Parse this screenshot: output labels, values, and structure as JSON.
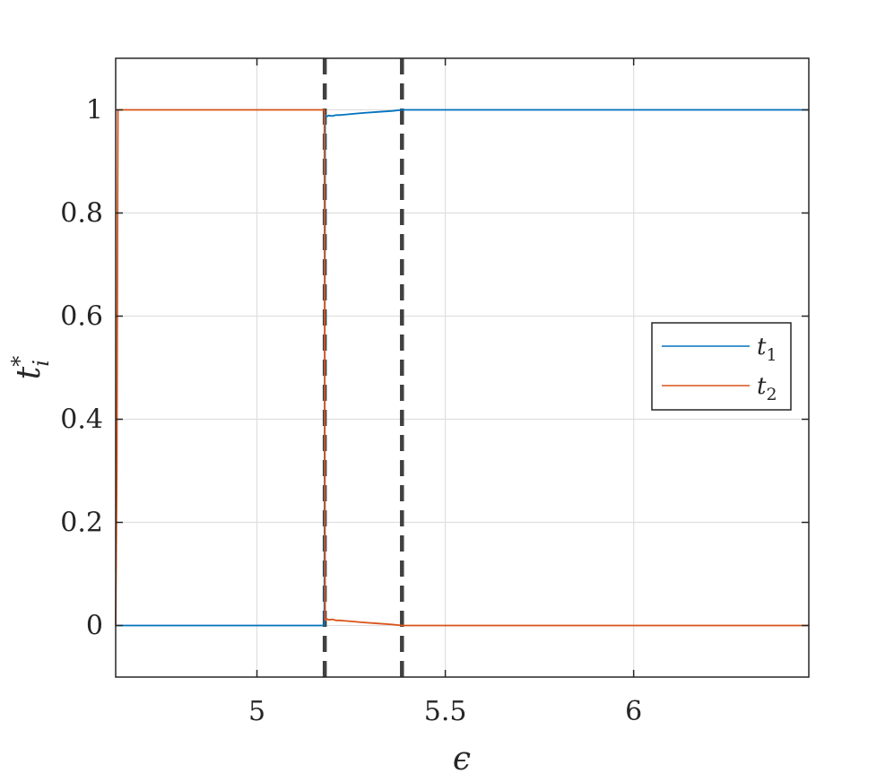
{
  "chart_data": {
    "type": "line",
    "title": "",
    "xlabel": "ϵ",
    "ylabel_base": "t",
    "ylabel_sup": "*",
    "ylabel_sub": "i",
    "xlim": [
      4.625,
      6.465
    ],
    "ylim": [
      -0.1,
      1.1
    ],
    "xticks": [
      {
        "value": 5,
        "label": "5"
      },
      {
        "value": 5.5,
        "label": "5.5"
      },
      {
        "value": 6,
        "label": "6"
      }
    ],
    "yticks": [
      {
        "value": 0,
        "label": "0"
      },
      {
        "value": 0.2,
        "label": "0.2"
      },
      {
        "value": 0.4,
        "label": "0.4"
      },
      {
        "value": 0.6,
        "label": "0.6"
      },
      {
        "value": 0.8,
        "label": "0.8"
      },
      {
        "value": 1,
        "label": "1"
      }
    ],
    "grid": true,
    "legend_position": "right",
    "vlines": [
      {
        "x": 5.18,
        "style": "dashed",
        "color": "#404040"
      },
      {
        "x": 5.385,
        "style": "dashed",
        "color": "#404040"
      }
    ],
    "series": [
      {
        "name": "t",
        "name_sub": "1",
        "color": "#0072BD",
        "x": [
          4.625,
          4.63,
          5.179,
          5.181,
          5.185,
          5.19,
          5.2,
          5.21,
          5.22,
          5.25,
          5.28,
          5.32,
          5.36,
          5.385,
          5.4,
          6.465
        ],
        "y": [
          0,
          0,
          0,
          0.99,
          0.987,
          0.989,
          0.988,
          0.99,
          0.99,
          0.992,
          0.994,
          0.996,
          0.998,
          1,
          1,
          1
        ]
      },
      {
        "name": "t",
        "name_sub": "2",
        "color": "#D95319",
        "x": [
          4.625,
          4.628,
          4.631,
          5.179,
          5.181,
          5.185,
          5.19,
          5.2,
          5.21,
          5.22,
          5.25,
          5.28,
          5.32,
          5.36,
          5.385,
          5.4,
          6.465
        ],
        "y": [
          0,
          0.3,
          1,
          1,
          0.01,
          0.013,
          0.011,
          0.012,
          0.01,
          0.01,
          0.008,
          0.006,
          0.004,
          0.002,
          0,
          0,
          0
        ]
      }
    ]
  }
}
